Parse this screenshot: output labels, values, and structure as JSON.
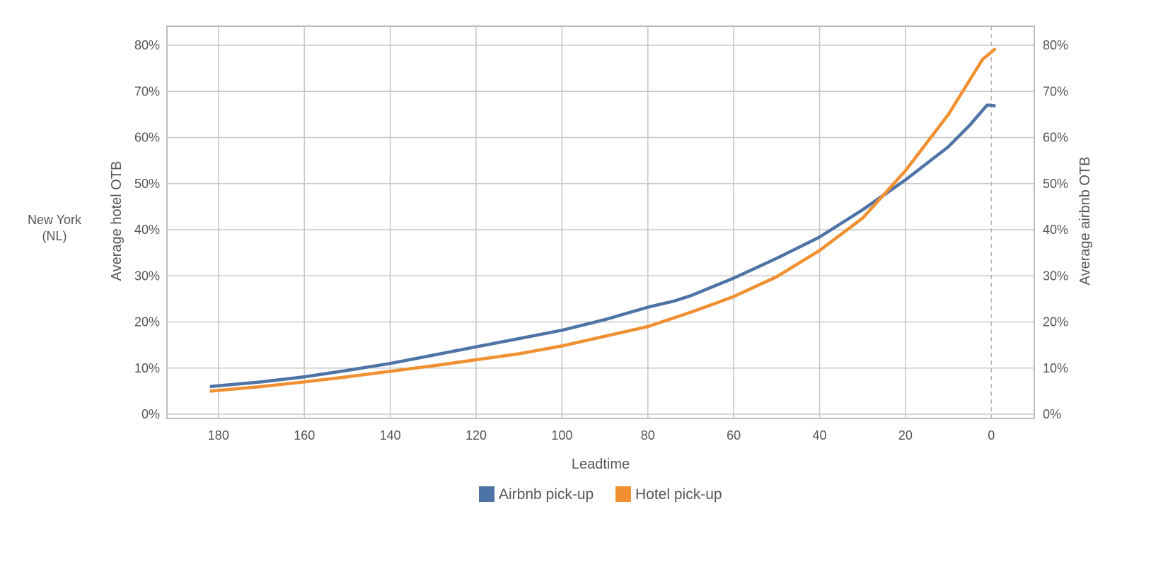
{
  "side_label": [
    "New York",
    "(NL)"
  ],
  "chart_data": {
    "type": "line",
    "xlabel": "Leadtime",
    "ylabel_left": "Average hotel OTB",
    "ylabel_right": "Average airbnb OTB",
    "x_ticks": [
      180,
      160,
      140,
      120,
      100,
      80,
      60,
      40,
      20,
      0
    ],
    "xlim": [
      192,
      -10
    ],
    "x_reversed": true,
    "ylim": [
      0,
      0.8
    ],
    "y_ticks": [
      0,
      0.1,
      0.2,
      0.3,
      0.4,
      0.5,
      0.6,
      0.7,
      0.8
    ],
    "y_tick_labels": [
      "0%",
      "10%",
      "20%",
      "30%",
      "40%",
      "50%",
      "60%",
      "70%",
      "80%"
    ],
    "grid": true,
    "reference_line_x": 0,
    "legend_position": "bottom",
    "series": [
      {
        "name": "Airbnb pick-up",
        "color": "#4e74a6",
        "x": [
          182,
          170,
          160,
          150,
          140,
          130,
          120,
          110,
          100,
          90,
          80,
          74,
          70,
          60,
          50,
          40,
          30,
          20,
          10,
          5,
          1,
          0,
          -1
        ],
        "y": [
          0.06,
          0.07,
          0.081,
          0.095,
          0.11,
          0.128,
          0.146,
          0.164,
          0.182,
          0.205,
          0.232,
          0.245,
          0.257,
          0.295,
          0.338,
          0.384,
          0.443,
          0.508,
          0.58,
          0.627,
          0.67,
          0.67,
          0.668
        ]
      },
      {
        "name": "Hotel pick-up",
        "color": "#f09030",
        "x": [
          182,
          170,
          160,
          150,
          140,
          130,
          120,
          110,
          100,
          90,
          80,
          70,
          60,
          50,
          40,
          30,
          20,
          10,
          2,
          0,
          -1
        ],
        "y": [
          0.05,
          0.06,
          0.07,
          0.081,
          0.093,
          0.105,
          0.118,
          0.131,
          0.148,
          0.169,
          0.19,
          0.221,
          0.255,
          0.298,
          0.355,
          0.425,
          0.528,
          0.65,
          0.77,
          0.785,
          0.793
        ]
      }
    ]
  }
}
